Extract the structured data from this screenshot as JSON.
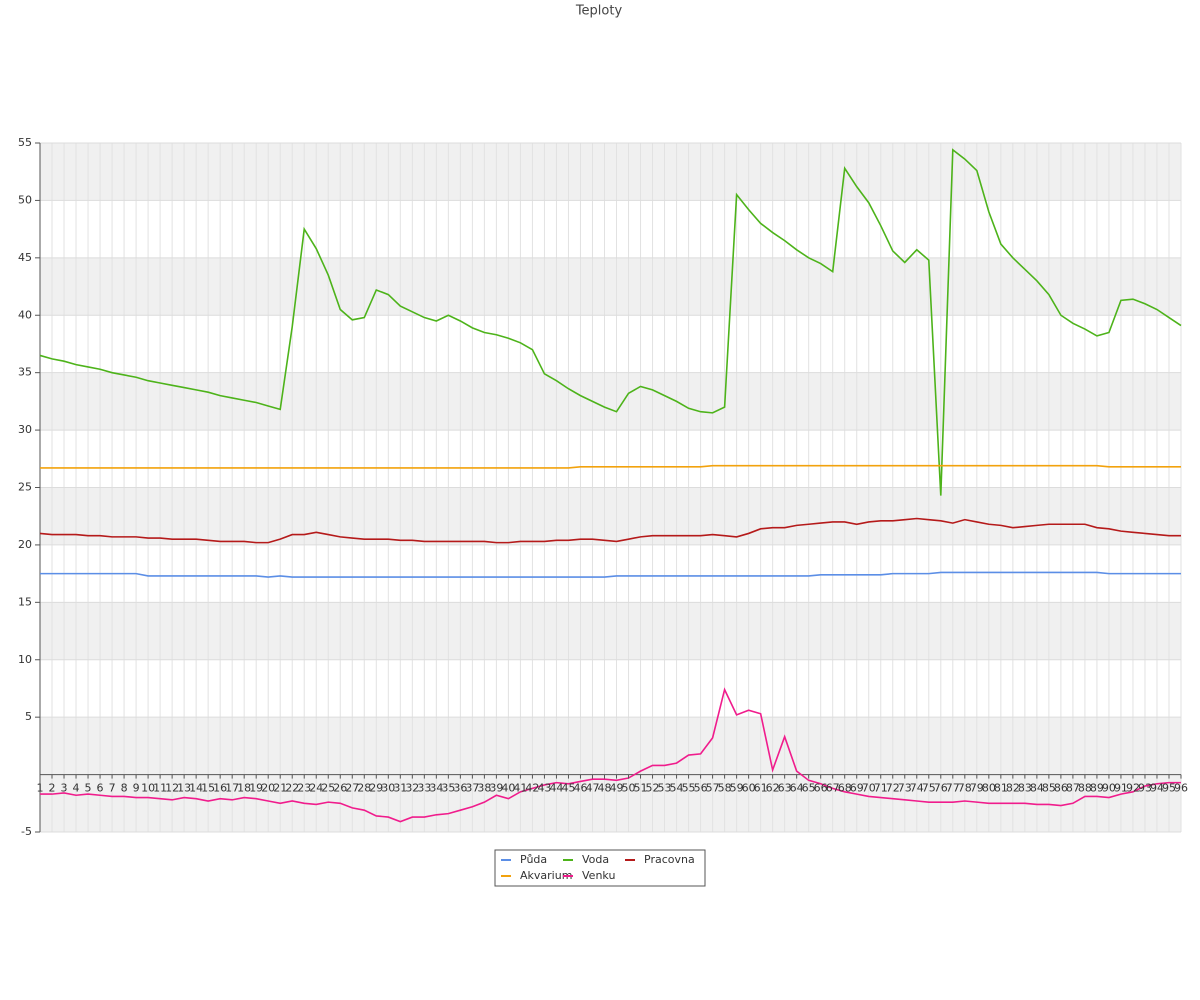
{
  "chart_data": {
    "type": "line",
    "title": "Teploty",
    "categories": [
      "1",
      "2",
      "3",
      "4",
      "5",
      "6",
      "7",
      "8",
      "9",
      "10",
      "11",
      "12",
      "13",
      "14",
      "15",
      "16",
      "17",
      "18",
      "19",
      "20",
      "21",
      "22",
      "23",
      "24",
      "25",
      "26",
      "27",
      "28",
      "29",
      "30",
      "31",
      "32",
      "33",
      "34",
      "35",
      "36",
      "37",
      "38",
      "39",
      "40",
      "41",
      "42",
      "43",
      "44",
      "45",
      "46",
      "47",
      "48",
      "49",
      "50",
      "51",
      "52",
      "53",
      "54",
      "55",
      "56",
      "57",
      "58",
      "59",
      "60",
      "61",
      "62",
      "63",
      "64",
      "65",
      "66",
      "67",
      "68",
      "69",
      "70",
      "71",
      "72",
      "73",
      "74",
      "75",
      "76",
      "77",
      "78",
      "79",
      "80",
      "81",
      "82",
      "83",
      "84",
      "85",
      "86",
      "87",
      "88",
      "89",
      "90",
      "91",
      "92",
      "93",
      "94",
      "95",
      "96"
    ],
    "series": [
      {
        "name": "Půda",
        "color": "#5b8ee6",
        "values": [
          17.5,
          17.5,
          17.5,
          17.5,
          17.5,
          17.5,
          17.5,
          17.5,
          17.5,
          17.3,
          17.3,
          17.3,
          17.3,
          17.3,
          17.3,
          17.3,
          17.3,
          17.3,
          17.3,
          17.2,
          17.3,
          17.2,
          17.2,
          17.2,
          17.2,
          17.2,
          17.2,
          17.2,
          17.2,
          17.2,
          17.2,
          17.2,
          17.2,
          17.2,
          17.2,
          17.2,
          17.2,
          17.2,
          17.2,
          17.2,
          17.2,
          17.2,
          17.2,
          17.2,
          17.2,
          17.2,
          17.2,
          17.2,
          17.3,
          17.3,
          17.3,
          17.3,
          17.3,
          17.3,
          17.3,
          17.3,
          17.3,
          17.3,
          17.3,
          17.3,
          17.3,
          17.3,
          17.3,
          17.3,
          17.3,
          17.4,
          17.4,
          17.4,
          17.4,
          17.4,
          17.4,
          17.5,
          17.5,
          17.5,
          17.5,
          17.6,
          17.6,
          17.6,
          17.6,
          17.6,
          17.6,
          17.6,
          17.6,
          17.6,
          17.6,
          17.6,
          17.6,
          17.6,
          17.6,
          17.5,
          17.5,
          17.5,
          17.5,
          17.5,
          17.5,
          17.5
        ]
      },
      {
        "name": "Voda",
        "color": "#4db31a",
        "values": [
          36.5,
          36.2,
          36.0,
          35.7,
          35.5,
          35.3,
          35.0,
          34.8,
          34.6,
          34.3,
          34.1,
          33.9,
          33.7,
          33.5,
          33.3,
          33.0,
          32.8,
          32.6,
          32.4,
          32.1,
          31.8,
          39.0,
          47.5,
          45.8,
          43.5,
          40.5,
          39.6,
          39.8,
          42.2,
          41.8,
          40.8,
          40.3,
          39.8,
          39.5,
          40.0,
          39.5,
          38.9,
          38.5,
          38.3,
          38.0,
          37.6,
          37.0,
          34.9,
          34.3,
          33.6,
          33.0,
          32.5,
          32.0,
          31.6,
          33.2,
          33.8,
          33.5,
          33.0,
          32.5,
          31.9,
          31.6,
          31.5,
          32.0,
          50.5,
          49.2,
          48.0,
          47.2,
          46.5,
          45.7,
          45.0,
          44.5,
          43.8,
          52.8,
          51.2,
          49.8,
          47.8,
          45.6,
          44.6,
          45.7,
          44.8,
          24.3,
          54.4,
          53.6,
          52.6,
          49.0,
          46.2,
          45.0,
          44.0,
          43.0,
          41.8,
          40.0,
          39.3,
          38.8,
          38.2,
          38.5,
          41.3,
          41.4,
          41.0,
          40.5,
          39.8,
          39.1
        ]
      },
      {
        "name": "Pracovna",
        "color": "#b51a1a",
        "values": [
          21.0,
          20.9,
          20.9,
          20.9,
          20.8,
          20.8,
          20.7,
          20.7,
          20.7,
          20.6,
          20.6,
          20.5,
          20.5,
          20.5,
          20.4,
          20.3,
          20.3,
          20.3,
          20.2,
          20.2,
          20.5,
          20.9,
          20.9,
          21.1,
          20.9,
          20.7,
          20.6,
          20.5,
          20.5,
          20.5,
          20.4,
          20.4,
          20.3,
          20.3,
          20.3,
          20.3,
          20.3,
          20.3,
          20.2,
          20.2,
          20.3,
          20.3,
          20.3,
          20.4,
          20.4,
          20.5,
          20.5,
          20.4,
          20.3,
          20.5,
          20.7,
          20.8,
          20.8,
          20.8,
          20.8,
          20.8,
          20.9,
          20.8,
          20.7,
          21.0,
          21.4,
          21.5,
          21.5,
          21.7,
          21.8,
          21.9,
          22.0,
          22.0,
          21.8,
          22.0,
          22.1,
          22.1,
          22.2,
          22.3,
          22.2,
          22.1,
          21.9,
          22.2,
          22.0,
          21.8,
          21.7,
          21.5,
          21.6,
          21.7,
          21.8,
          21.8,
          21.8,
          21.8,
          21.5,
          21.4,
          21.2,
          21.1,
          21.0,
          20.9,
          20.8,
          20.8
        ]
      },
      {
        "name": "Akvarium",
        "color": "#f2a20d",
        "values": [
          26.7,
          26.7,
          26.7,
          26.7,
          26.7,
          26.7,
          26.7,
          26.7,
          26.7,
          26.7,
          26.7,
          26.7,
          26.7,
          26.7,
          26.7,
          26.7,
          26.7,
          26.7,
          26.7,
          26.7,
          26.7,
          26.7,
          26.7,
          26.7,
          26.7,
          26.7,
          26.7,
          26.7,
          26.7,
          26.7,
          26.7,
          26.7,
          26.7,
          26.7,
          26.7,
          26.7,
          26.7,
          26.7,
          26.7,
          26.7,
          26.7,
          26.7,
          26.7,
          26.7,
          26.7,
          26.8,
          26.8,
          26.8,
          26.8,
          26.8,
          26.8,
          26.8,
          26.8,
          26.8,
          26.8,
          26.8,
          26.9,
          26.9,
          26.9,
          26.9,
          26.9,
          26.9,
          26.9,
          26.9,
          26.9,
          26.9,
          26.9,
          26.9,
          26.9,
          26.9,
          26.9,
          26.9,
          26.9,
          26.9,
          26.9,
          26.9,
          26.9,
          26.9,
          26.9,
          26.9,
          26.9,
          26.9,
          26.9,
          26.9,
          26.9,
          26.9,
          26.9,
          26.9,
          26.9,
          26.8,
          26.8,
          26.8,
          26.8,
          26.8,
          26.8,
          26.8
        ]
      },
      {
        "name": "Venku",
        "color": "#f01c8c",
        "values": [
          -1.7,
          -1.7,
          -1.6,
          -1.8,
          -1.7,
          -1.8,
          -1.9,
          -1.9,
          -2.0,
          -2.0,
          -2.1,
          -2.2,
          -2.0,
          -2.1,
          -2.3,
          -2.1,
          -2.2,
          -2.0,
          -2.1,
          -2.3,
          -2.5,
          -2.3,
          -2.5,
          -2.6,
          -2.4,
          -2.5,
          -2.9,
          -3.1,
          -3.6,
          -3.7,
          -4.1,
          -3.7,
          -3.7,
          -3.5,
          -3.4,
          -3.1,
          -2.8,
          -2.4,
          -1.8,
          -2.1,
          -1.5,
          -1.2,
          -0.9,
          -0.7,
          -0.8,
          -0.6,
          -0.4,
          -0.4,
          -0.5,
          -0.3,
          0.3,
          0.8,
          0.8,
          1.0,
          1.7,
          1.8,
          3.2,
          7.4,
          5.2,
          5.6,
          5.3,
          0.4,
          3.3,
          0.3,
          -0.5,
          -0.8,
          -1.2,
          -1.5,
          -1.7,
          -1.9,
          -2.0,
          -2.1,
          -2.2,
          -2.3,
          -2.4,
          -2.4,
          -2.4,
          -2.3,
          -2.4,
          -2.5,
          -2.5,
          -2.5,
          -2.5,
          -2.6,
          -2.6,
          -2.7,
          -2.5,
          -1.9,
          -1.9,
          -2.0,
          -1.7,
          -1.5,
          -1.0,
          -0.8,
          -0.7,
          -0.7
        ]
      }
    ],
    "ylim": [
      -5,
      55
    ],
    "yticks": [
      55,
      50,
      45,
      40,
      35,
      30,
      25,
      20,
      15,
      10,
      5,
      -5
    ],
    "grid": true
  }
}
